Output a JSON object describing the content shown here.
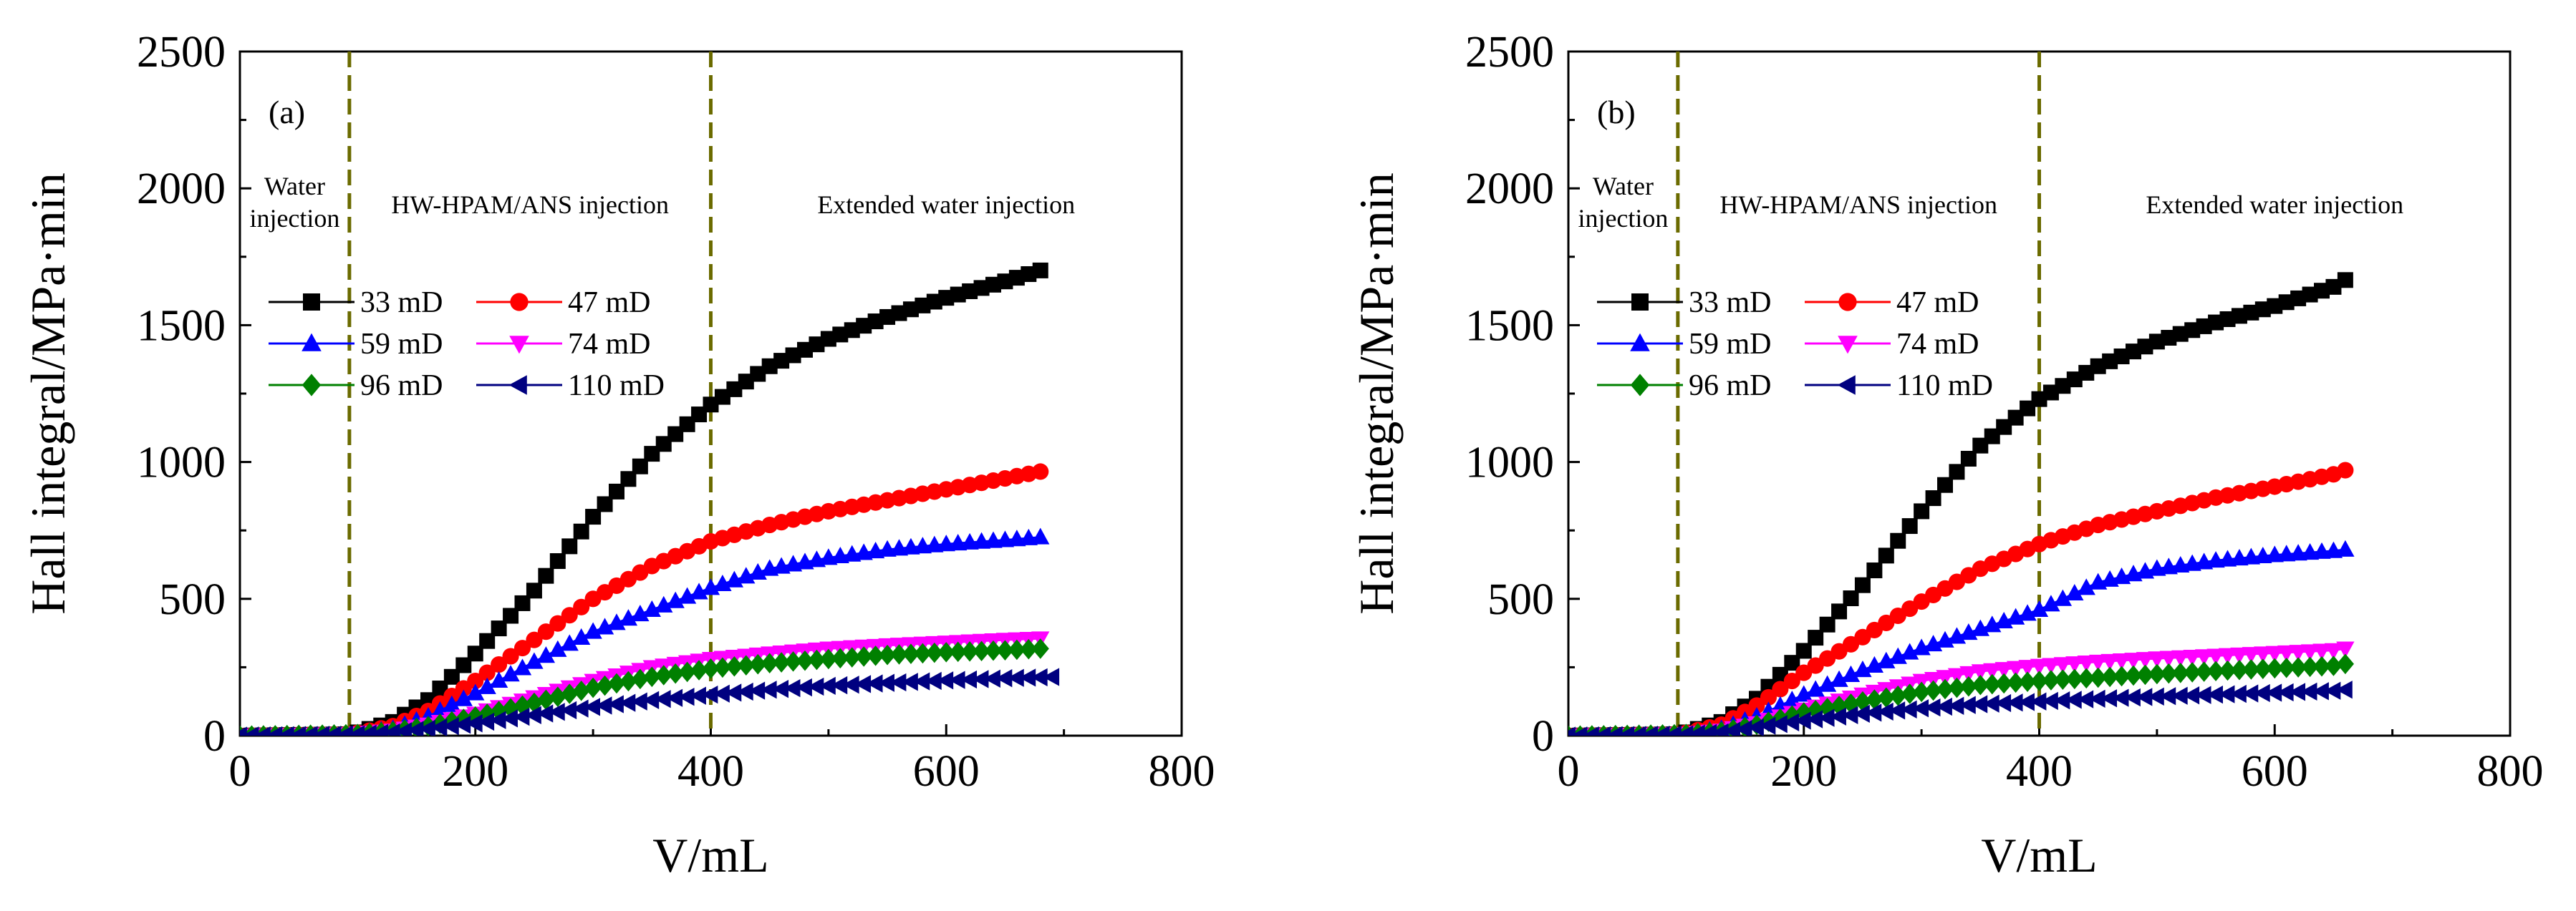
{
  "chart_data": [
    {
      "type": "line",
      "panel_tag": "(a)",
      "xlabel": "V/mL",
      "ylabel": "Hall integral/MPa·min",
      "xlim": [
        0,
        800
      ],
      "ylim": [
        0,
        2500
      ],
      "xticks": [
        "0",
        "200",
        "400",
        "600",
        "800"
      ],
      "yticks": [
        "0",
        "500",
        "1000",
        "1500",
        "2000",
        "2500"
      ],
      "phase_boundaries": [
        93,
        400
      ],
      "regions": {
        "water_1": "Water",
        "water_2": "injection",
        "polymer": "HW-HPAM/ANS injection",
        "extended": "Extended water injection"
      },
      "series": [
        {
          "name": "33 mD",
          "marker": "square",
          "color": "#000000",
          "xmax": 680,
          "points": [
            [
              0,
              0
            ],
            [
              90,
              5
            ],
            [
              100,
              12
            ],
            [
              130,
              50
            ],
            [
              160,
              130
            ],
            [
              200,
              300
            ],
            [
              250,
              530
            ],
            [
              300,
              800
            ],
            [
              350,
              1030
            ],
            [
              400,
              1210
            ],
            [
              450,
              1350
            ],
            [
              500,
              1450
            ],
            [
              550,
              1530
            ],
            [
              600,
              1600
            ],
            [
              650,
              1660
            ],
            [
              680,
              1700
            ]
          ]
        },
        {
          "name": "47 mD",
          "marker": "circle",
          "color": "#ff0000",
          "xmax": 680,
          "points": [
            [
              0,
              0
            ],
            [
              90,
              5
            ],
            [
              100,
              10
            ],
            [
              130,
              35
            ],
            [
              160,
              90
            ],
            [
              200,
              200
            ],
            [
              250,
              350
            ],
            [
              300,
              500
            ],
            [
              350,
              620
            ],
            [
              400,
              710
            ],
            [
              450,
              770
            ],
            [
              500,
              820
            ],
            [
              550,
              860
            ],
            [
              600,
              900
            ],
            [
              650,
              940
            ],
            [
              680,
              965
            ]
          ]
        },
        {
          "name": "59 mD",
          "marker": "triangle-up",
          "color": "#0000ff",
          "xmax": 680,
          "points": [
            [
              0,
              0
            ],
            [
              90,
              5
            ],
            [
              100,
              8
            ],
            [
              130,
              25
            ],
            [
              160,
              70
            ],
            [
              200,
              155
            ],
            [
              250,
              270
            ],
            [
              300,
              380
            ],
            [
              350,
              460
            ],
            [
              400,
              540
            ],
            [
              450,
              610
            ],
            [
              500,
              650
            ],
            [
              550,
              680
            ],
            [
              600,
              700
            ],
            [
              650,
              715
            ],
            [
              680,
              725
            ]
          ]
        },
        {
          "name": "74 mD",
          "marker": "triangle-down",
          "color": "#ff00ff",
          "xmax": 680,
          "points": [
            [
              0,
              0
            ],
            [
              90,
              5
            ],
            [
              100,
              7
            ],
            [
              130,
              18
            ],
            [
              160,
              40
            ],
            [
              200,
              80
            ],
            [
              250,
              140
            ],
            [
              300,
              200
            ],
            [
              350,
              250
            ],
            [
              400,
              280
            ],
            [
              450,
              300
            ],
            [
              500,
              318
            ],
            [
              550,
              330
            ],
            [
              600,
              340
            ],
            [
              650,
              350
            ],
            [
              680,
              355
            ]
          ]
        },
        {
          "name": "96 mD",
          "marker": "diamond",
          "color": "#008000",
          "xmax": 680,
          "points": [
            [
              0,
              0
            ],
            [
              90,
              5
            ],
            [
              100,
              6
            ],
            [
              130,
              16
            ],
            [
              160,
              35
            ],
            [
              200,
              70
            ],
            [
              250,
              120
            ],
            [
              300,
              175
            ],
            [
              350,
              215
            ],
            [
              400,
              245
            ],
            [
              450,
              265
            ],
            [
              500,
              280
            ],
            [
              550,
              295
            ],
            [
              600,
              305
            ],
            [
              650,
              312
            ],
            [
              680,
              318
            ]
          ]
        },
        {
          "name": "110 mD",
          "marker": "triangle-left",
          "color": "#000080",
          "xmax": 695,
          "points": [
            [
              0,
              0
            ],
            [
              90,
              4
            ],
            [
              100,
              5
            ],
            [
              130,
              12
            ],
            [
              160,
              25
            ],
            [
              200,
              45
            ],
            [
              250,
              75
            ],
            [
              300,
              105
            ],
            [
              350,
              130
            ],
            [
              400,
              150
            ],
            [
              450,
              168
            ],
            [
              500,
              182
            ],
            [
              550,
              193
            ],
            [
              600,
              202
            ],
            [
              650,
              210
            ],
            [
              695,
              215
            ]
          ]
        }
      ]
    },
    {
      "type": "line",
      "panel_tag": "(b)",
      "xlabel": "V/mL",
      "ylabel": "Hall integral/MPa·min",
      "xlim": [
        0,
        800
      ],
      "ylim": [
        0,
        2500
      ],
      "xticks": [
        "0",
        "200",
        "400",
        "600",
        "800"
      ],
      "yticks": [
        "0",
        "500",
        "1000",
        "1500",
        "2000",
        "2500"
      ],
      "phase_boundaries": [
        93,
        400
      ],
      "regions": {
        "water_1": "Water",
        "water_2": "injection",
        "polymer": "HW-HPAM/ANS injection",
        "extended": "Extended water injection"
      },
      "series": [
        {
          "name": "33 mD",
          "marker": "square",
          "color": "#000000",
          "xmax": 660,
          "points": [
            [
              0,
              0
            ],
            [
              90,
              5
            ],
            [
              100,
              12
            ],
            [
              130,
              50
            ],
            [
              160,
              135
            ],
            [
              200,
              310
            ],
            [
              250,
              550
            ],
            [
              300,
              820
            ],
            [
              350,
              1060
            ],
            [
              400,
              1230
            ],
            [
              450,
              1350
            ],
            [
              500,
              1440
            ],
            [
              550,
              1510
            ],
            [
              600,
              1570
            ],
            [
              650,
              1640
            ],
            [
              660,
              1665
            ]
          ]
        },
        {
          "name": "47 mD",
          "marker": "circle",
          "color": "#ff0000",
          "xmax": 660,
          "points": [
            [
              0,
              0
            ],
            [
              90,
              5
            ],
            [
              100,
              10
            ],
            [
              130,
              40
            ],
            [
              160,
              110
            ],
            [
              200,
              230
            ],
            [
              250,
              360
            ],
            [
              300,
              490
            ],
            [
              350,
              610
            ],
            [
              400,
              700
            ],
            [
              450,
              770
            ],
            [
              500,
              820
            ],
            [
              550,
              870
            ],
            [
              600,
              910
            ],
            [
              650,
              955
            ],
            [
              660,
              970
            ]
          ]
        },
        {
          "name": "59 mD",
          "marker": "triangle-up",
          "color": "#0000ff",
          "xmax": 660,
          "points": [
            [
              0,
              0
            ],
            [
              90,
              5
            ],
            [
              100,
              7
            ],
            [
              130,
              25
            ],
            [
              160,
              70
            ],
            [
              200,
              150
            ],
            [
              250,
              240
            ],
            [
              300,
              320
            ],
            [
              350,
              390
            ],
            [
              400,
              460
            ],
            [
              450,
              560
            ],
            [
              500,
              610
            ],
            [
              550,
              640
            ],
            [
              600,
              660
            ],
            [
              650,
              675
            ],
            [
              660,
              680
            ]
          ]
        },
        {
          "name": "74 mD",
          "marker": "triangle-down",
          "color": "#ff00ff",
          "xmax": 660,
          "points": [
            [
              0,
              0
            ],
            [
              90,
              5
            ],
            [
              100,
              6
            ],
            [
              130,
              18
            ],
            [
              160,
              45
            ],
            [
              200,
              95
            ],
            [
              250,
              150
            ],
            [
              300,
              200
            ],
            [
              350,
              235
            ],
            [
              400,
              255
            ],
            [
              450,
              270
            ],
            [
              500,
              282
            ],
            [
              550,
              292
            ],
            [
              600,
              302
            ],
            [
              650,
              312
            ],
            [
              660,
              318
            ]
          ]
        },
        {
          "name": "96 mD",
          "marker": "diamond",
          "color": "#008000",
          "xmax": 660,
          "points": [
            [
              0,
              0
            ],
            [
              90,
              5
            ],
            [
              100,
              6
            ],
            [
              130,
              15
            ],
            [
              160,
              40
            ],
            [
              200,
              85
            ],
            [
              250,
              125
            ],
            [
              300,
              160
            ],
            [
              350,
              185
            ],
            [
              400,
              200
            ],
            [
              450,
              212
            ],
            [
              500,
              225
            ],
            [
              550,
              236
            ],
            [
              600,
              246
            ],
            [
              650,
              255
            ],
            [
              660,
              262
            ]
          ]
        },
        {
          "name": "110 mD",
          "marker": "triangle-left",
          "color": "#000080",
          "xmax": 660,
          "points": [
            [
              0,
              0
            ],
            [
              90,
              4
            ],
            [
              100,
              5
            ],
            [
              130,
              12
            ],
            [
              160,
              30
            ],
            [
              200,
              55
            ],
            [
              250,
              80
            ],
            [
              300,
              100
            ],
            [
              350,
              115
            ],
            [
              400,
              125
            ],
            [
              450,
              135
            ],
            [
              500,
              143
            ],
            [
              550,
              150
            ],
            [
              600,
              157
            ],
            [
              650,
              164
            ],
            [
              660,
              168
            ]
          ]
        }
      ]
    }
  ]
}
